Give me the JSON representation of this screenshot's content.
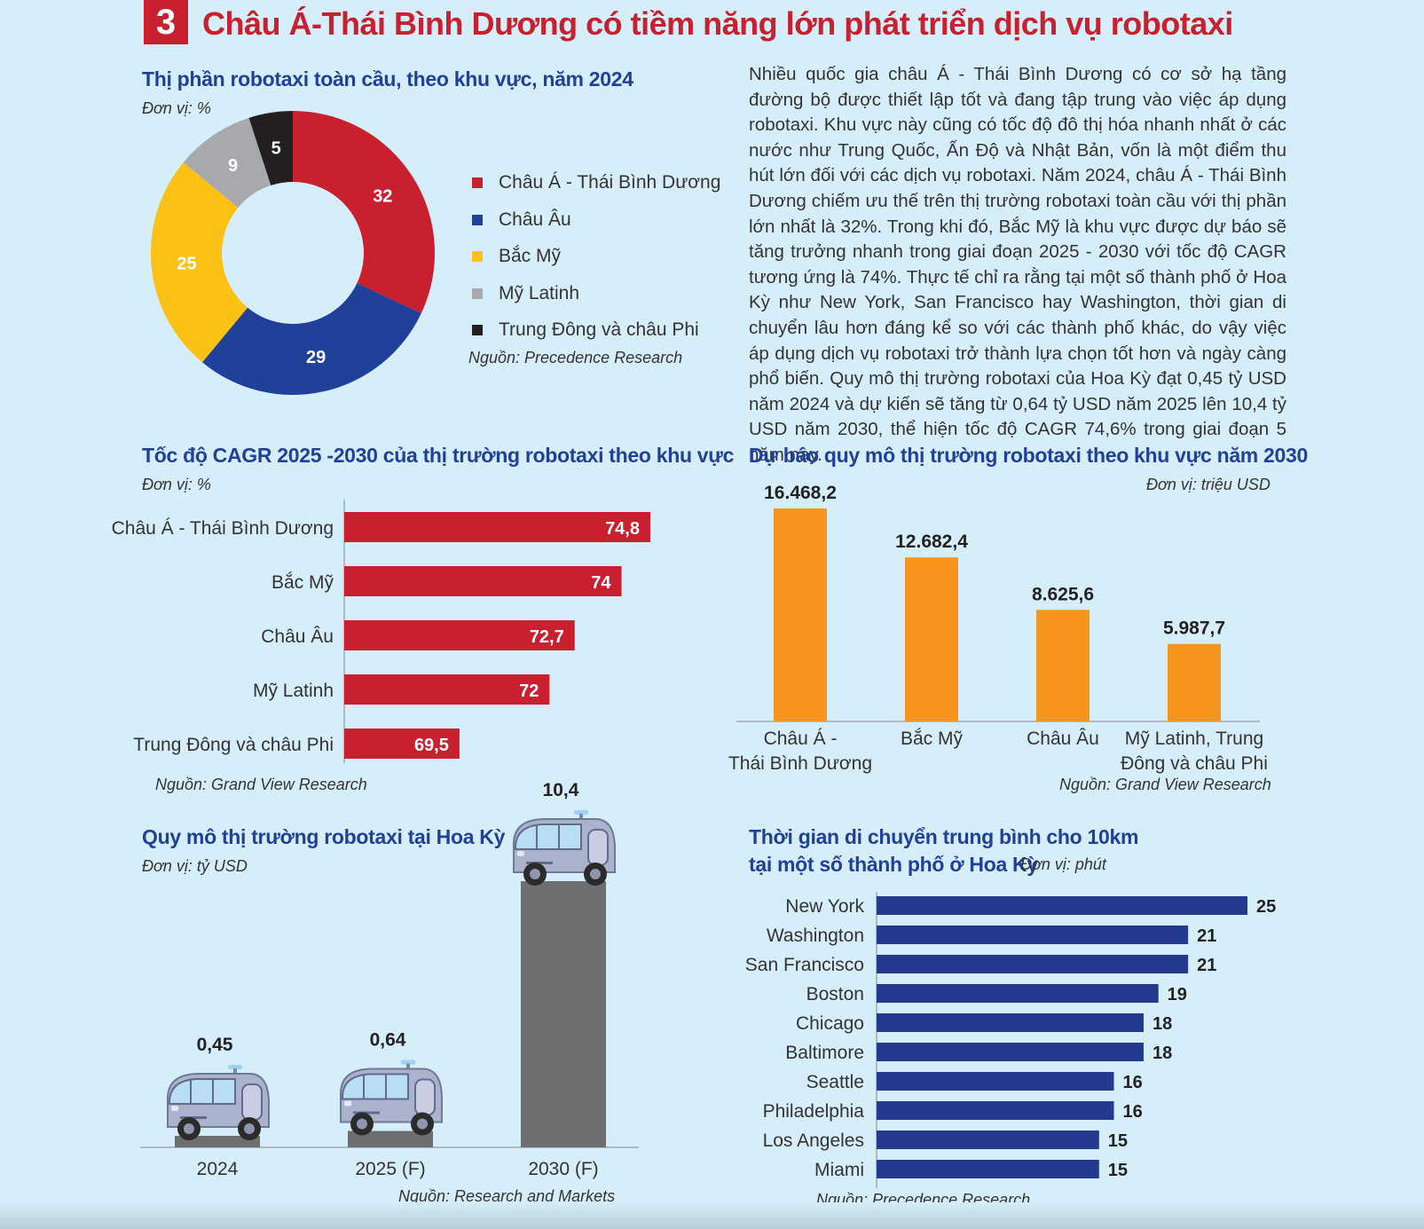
{
  "header": {
    "number": "3",
    "title": "Châu Á-Thái Bình Dương có tiềm năng lớn phát triển dịch vụ robotaxi"
  },
  "paragraph": "Nhiều quốc gia châu Á - Thái Bình Dương có cơ sở hạ tầng đường bộ được thiết lập tốt và đang tập trung vào việc áp dụng robotaxi. Khu vực này cũng có tốc độ đô thị hóa nhanh nhất ở các nước như Trung Quốc, Ấn Độ và Nhật Bản, vốn là một điểm thu hút lớn đối với các dịch vụ robotaxi. Năm 2024, châu Á - Thái Bình Dương chiếm ưu thế trên thị trường robotaxi toàn cầu với thị phần lớn nhất là 32%. Trong khi đó, Bắc Mỹ là khu vực được dự báo sẽ tăng trưởng nhanh trong giai đoạn 2025 - 2030 với tốc độ CAGR tương ứng là 74%. Thực tế chỉ ra rằng tại một số thành phố ở Hoa Kỳ như New York, San Francisco hay Washington, thời gian di chuyển lâu hơn đáng kể so với các thành phố khác, do vậy việc áp dụng dịch vụ robotaxi trở thành lựa chọn tốt hơn và ngày càng phổ biến. Quy mô thị trường robotaxi của Hoa Kỳ đạt 0,45 tỷ USD năm 2024 và dự kiến sẽ tăng từ 0,64 tỷ USD năm 2025 lên 10,4 tỷ USD năm 2030, thể hiện tốc độ CAGR 74,6% trong giai đoạn 5 năm này.",
  "colors": {
    "red": "#c8202f",
    "blue": "#20409a",
    "yellow": "#fcc115",
    "gray": "#a7a9ac",
    "black": "#231f20",
    "orange": "#f7941d",
    "darkgray": "#6d6e70",
    "navy": "#233a8e"
  },
  "chart_data": [
    {
      "id": "pie",
      "type": "pie",
      "title": "Thị phần robotaxi toàn cầu, theo khu vực, năm 2024",
      "unit": "Đơn vị: %",
      "source": "Nguồn: Precedence Research",
      "slices": [
        {
          "label": "Châu Á - Thái Bình Dương",
          "value": 32,
          "display": "32",
          "color": "#c8202f"
        },
        {
          "label": "Châu Âu",
          "value": 29,
          "display": "29",
          "color": "#20409a"
        },
        {
          "label": "Bắc Mỹ",
          "value": 25,
          "display": "25",
          "color": "#fcc115"
        },
        {
          "label": "Mỹ Latinh",
          "value": 9,
          "display": "9",
          "color": "#a7a9ac"
        },
        {
          "label": "Trung Đông và châu Phi",
          "value": 5,
          "display": "5",
          "color": "#231f20"
        }
      ]
    },
    {
      "id": "cagr",
      "type": "bar",
      "orientation": "horizontal",
      "title": "Tốc độ CAGR 2025 -2030 của thị trường robotaxi theo khu vực",
      "unit": "Đơn vị: %",
      "source": "Nguồn: Grand View Research",
      "categories": [
        "Châu Á - Thái Bình Dương",
        "Bắc Mỹ",
        "Châu Âu",
        "Mỹ Latinh",
        "Trung Đông và châu Phi"
      ],
      "values": [
        74.8,
        74,
        72.7,
        72,
        69.5
      ],
      "labels": [
        "74,8",
        "74",
        "72,7",
        "72",
        "69,5"
      ],
      "axis_min": 66.3,
      "axis_max": 74.8
    },
    {
      "id": "forecast",
      "type": "bar",
      "title": "Dự báo quy mô thị trường robotaxi theo khu vực năm 2030",
      "unit": "Đơn vị: triệu USD",
      "source": "Nguồn: Grand View Research",
      "categories": [
        [
          "Châu Á -",
          "Thái Bình Dương"
        ],
        [
          "Bắc Mỹ"
        ],
        [
          "Châu Âu"
        ],
        [
          "Mỹ Latinh, Trung",
          "Đông và châu Phi"
        ]
      ],
      "values": [
        16468.2,
        12682.4,
        8625.6,
        5987.7
      ],
      "labels": [
        "16.468,2",
        "12.682,4",
        "8.625,6",
        "5.987,7"
      ],
      "ylim": [
        0,
        16468.2
      ]
    },
    {
      "id": "us",
      "type": "bar",
      "title": "Quy mô thị trường robotaxi tại Hoa Kỳ",
      "unit": "Đơn vị: tỷ USD",
      "source": "Nguồn: Research and Markets",
      "categories": [
        "2024",
        "2025 (F)",
        "2030 (F)"
      ],
      "values": [
        0.45,
        0.64,
        10.4
      ],
      "labels": [
        "0,45",
        "0,64",
        "10,4"
      ],
      "ylim": [
        0,
        10.4
      ]
    },
    {
      "id": "travel",
      "type": "bar",
      "orientation": "horizontal",
      "title_lines": [
        "Thời gian di chuyển trung bình cho 10km",
        "tại một số thành phố ở Hoa Kỳ"
      ],
      "unit": "Đơn vị: phút",
      "source": "Nguồn: Precedence Research",
      "categories": [
        "New York",
        "Washington",
        "San Francisco",
        "Boston",
        "Chicago",
        "Baltimore",
        "Seattle",
        "Philadelphia",
        "Los Angeles",
        "Miami"
      ],
      "values": [
        25,
        21,
        21,
        19,
        18,
        18,
        16,
        16,
        15,
        15
      ],
      "labels": [
        "25",
        "21",
        "21",
        "19",
        "18",
        "18",
        "16",
        "16",
        "15",
        "15"
      ],
      "xlim": [
        0,
        25
      ]
    }
  ]
}
